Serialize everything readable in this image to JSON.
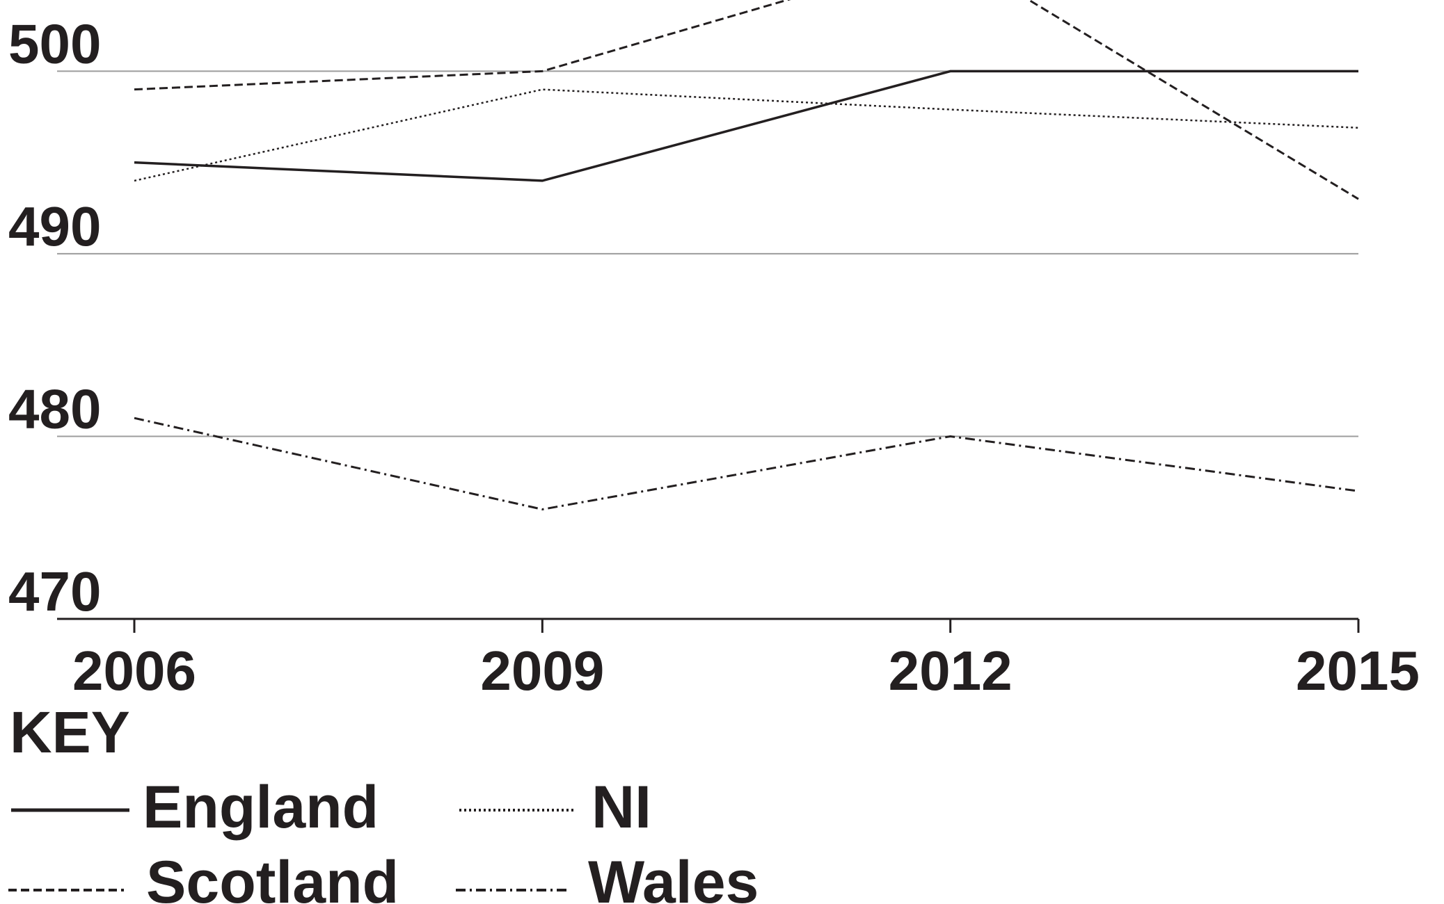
{
  "chart_data": {
    "type": "line",
    "x": [
      "2006",
      "2009",
      "2012",
      "2015"
    ],
    "series": [
      {
        "name": "England",
        "style": "solid",
        "values": [
          495,
          494.0,
          500,
          500
        ]
      },
      {
        "name": "NI",
        "style": "dotted",
        "values": [
          494.0,
          499.0,
          497.9,
          496.9
        ]
      },
      {
        "name": "Scotland",
        "style": "dashed",
        "values": [
          499.0,
          500,
          506.5,
          493.0
        ]
      },
      {
        "name": "Wales",
        "style": "dashdot",
        "values": [
          481.0,
          476.0,
          480,
          477.0
        ]
      }
    ],
    "y_ticks": [
      470,
      480,
      490,
      500
    ],
    "ylim": [
      470,
      503.9
    ],
    "grid": true,
    "line_color": "#231f20",
    "grid_color": "#9c9c9c",
    "legend": {
      "title": "KEY",
      "placement": "bottom-left",
      "entries": [
        "England",
        "NI",
        "Scotland",
        "Wales"
      ]
    }
  }
}
